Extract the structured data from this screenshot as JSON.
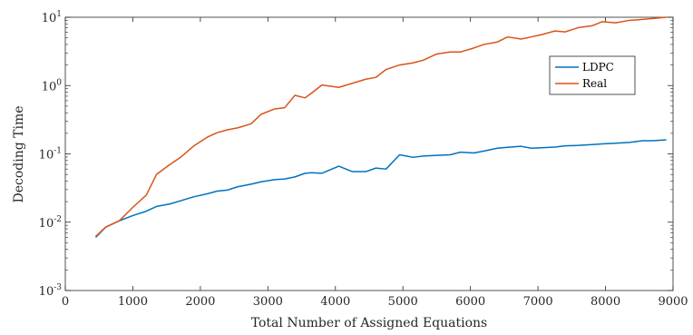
{
  "chart_data": {
    "type": "line",
    "title": "",
    "xlabel": "Total Number of Assigned Equations",
    "ylabel": "Decoding Time",
    "xlim": [
      0,
      9000
    ],
    "ylim": [
      0.001,
      10
    ],
    "yscale": "log",
    "grid": false,
    "legend_position": "top-right",
    "xticks": [
      "0",
      "1000",
      "2000",
      "3000",
      "4000",
      "5000",
      "6000",
      "7000",
      "8000",
      "9000"
    ],
    "yticks": [
      {
        "base": "10",
        "exp": "-3",
        "value": 0.001
      },
      {
        "base": "10",
        "exp": "-2",
        "value": 0.01
      },
      {
        "base": "10",
        "exp": "-1",
        "value": 0.1
      },
      {
        "base": "10",
        "exp": "0",
        "value": 1
      },
      {
        "base": "10",
        "exp": "1",
        "value": 10
      }
    ],
    "series": [
      {
        "name": "LDPC",
        "color": "#0072BD",
        "x": [
          450,
          600,
          800,
          1000,
          1200,
          1350,
          1550,
          1700,
          1900,
          2100,
          2250,
          2400,
          2550,
          2750,
          2900,
          3100,
          3250,
          3400,
          3550,
          3650,
          3800,
          4050,
          4250,
          4450,
          4600,
          4750,
          4950,
          5150,
          5300,
          5500,
          5700,
          5850,
          6050,
          6200,
          6400,
          6550,
          6750,
          6900,
          7050,
          7250,
          7400,
          7600,
          7800,
          7950,
          8150,
          8350,
          8550,
          8700,
          8900
        ],
        "y": [
          0.006,
          0.0085,
          0.0105,
          0.0125,
          0.0145,
          0.017,
          0.0185,
          0.0205,
          0.0235,
          0.026,
          0.0285,
          0.0295,
          0.033,
          0.036,
          0.039,
          0.042,
          0.043,
          0.046,
          0.052,
          0.053,
          0.052,
          0.066,
          0.055,
          0.055,
          0.062,
          0.06,
          0.097,
          0.089,
          0.093,
          0.095,
          0.097,
          0.106,
          0.103,
          0.11,
          0.121,
          0.125,
          0.129,
          0.121,
          0.123,
          0.126,
          0.131,
          0.133,
          0.137,
          0.14,
          0.143,
          0.147,
          0.156,
          0.156,
          0.161
        ]
      },
      {
        "name": "Real",
        "color": "#D95319",
        "x": [
          450,
          600,
          800,
          1000,
          1200,
          1350,
          1550,
          1700,
          1900,
          2100,
          2250,
          2400,
          2550,
          2750,
          2900,
          3100,
          3250,
          3400,
          3550,
          3650,
          3800,
          4050,
          4250,
          4450,
          4600,
          4750,
          4950,
          5150,
          5300,
          5500,
          5700,
          5850,
          6050,
          6200,
          6400,
          6550,
          6750,
          6900,
          7050,
          7250,
          7400,
          7600,
          7800,
          7950,
          8150,
          8350,
          8550,
          8700,
          8900
        ],
        "y": [
          0.0062,
          0.0085,
          0.0105,
          0.0165,
          0.025,
          0.05,
          0.07,
          0.088,
          0.13,
          0.175,
          0.205,
          0.225,
          0.24,
          0.275,
          0.38,
          0.455,
          0.475,
          0.72,
          0.66,
          0.78,
          1.02,
          0.94,
          1.08,
          1.24,
          1.32,
          1.72,
          2.0,
          2.15,
          2.35,
          2.9,
          3.1,
          3.1,
          3.55,
          4.0,
          4.35,
          5.15,
          4.8,
          5.15,
          5.55,
          6.3,
          6.1,
          7.05,
          7.5,
          8.6,
          8.3,
          9.0,
          9.3,
          9.6,
          10.0
        ]
      }
    ]
  }
}
